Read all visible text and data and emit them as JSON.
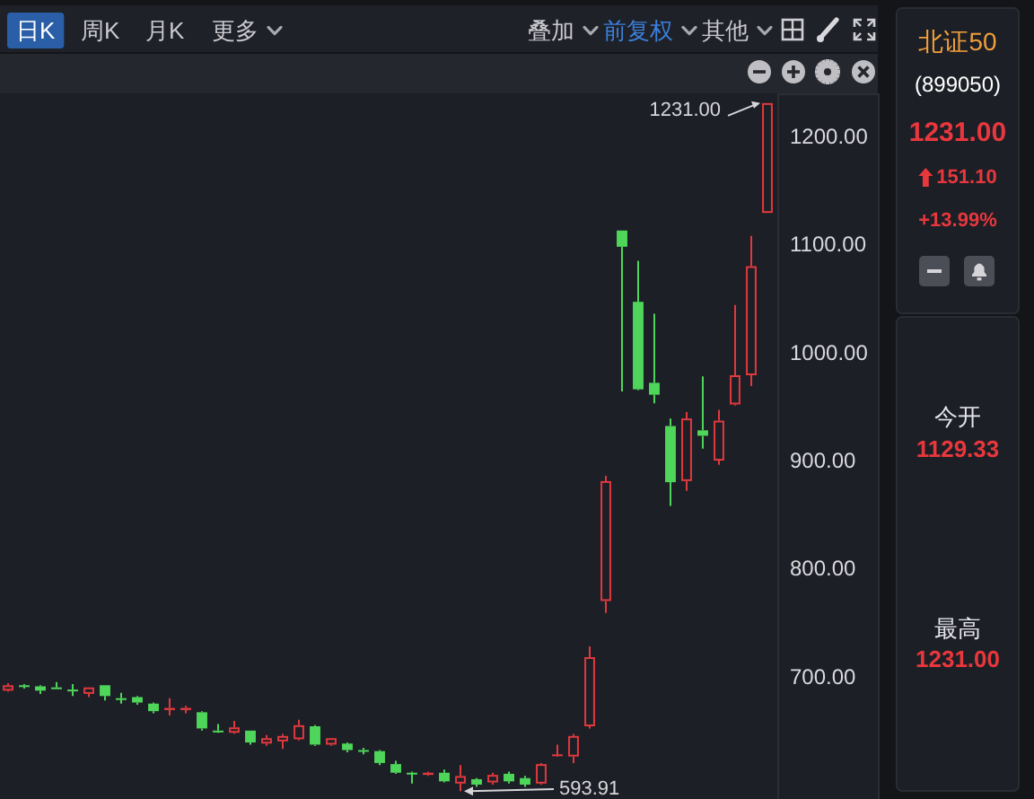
{
  "chart_data": [
    {
      "type": "other",
      "annotations": [
        "日K",
        "周K",
        "月K",
        "更多",
        "叠加",
        "前复权",
        "其他"
      ]
    },
    {
      "type": "candlestick",
      "tick_labels": "y",
      "categories": [
        null,
        null,
        null,
        null,
        null,
        null,
        null,
        null,
        null,
        null,
        null,
        null,
        null,
        null,
        null,
        null,
        null,
        null,
        null,
        null,
        null,
        null,
        null,
        null,
        null,
        null,
        null,
        null,
        null,
        null,
        null,
        null,
        null,
        null,
        null,
        null,
        null,
        null,
        null,
        null,
        null,
        null,
        null,
        null,
        null,
        null,
        null,
        null
      ],
      "ohlc": [
        [
          687,
          694,
          686,
          692
        ],
        [
          692,
          693,
          689,
          691
        ],
        [
          691,
          692,
          684,
          687
        ],
        [
          690,
          695,
          689,
          689
        ],
        [
          688,
          693,
          682,
          687
        ],
        [
          684,
          690,
          681,
          690
        ],
        [
          692,
          692,
          678,
          682
        ],
        [
          680,
          685,
          675,
          679
        ],
        [
          681,
          682,
          674,
          676
        ],
        [
          675,
          676,
          666,
          668
        ],
        [
          669,
          680,
          664,
          671
        ],
        [
          669,
          673,
          666,
          671
        ],
        [
          667,
          668,
          650,
          652
        ],
        [
          650,
          656,
          648,
          649
        ],
        [
          648,
          659,
          647,
          653
        ],
        [
          650,
          650,
          637,
          639
        ],
        [
          638,
          646,
          636,
          643
        ],
        [
          640,
          647,
          633,
          645
        ],
        [
          642,
          660,
          641,
          655
        ],
        [
          654,
          655,
          636,
          637
        ],
        [
          637,
          643,
          636,
          643
        ],
        [
          638,
          639,
          630,
          632
        ],
        [
          632,
          634,
          628,
          631
        ],
        [
          631,
          632,
          618,
          620
        ],
        [
          619,
          622,
          610,
          611
        ],
        [
          611,
          612,
          601,
          610
        ],
        [
          609,
          612,
          608,
          611
        ],
        [
          611,
          614,
          602,
          603
        ],
        [
          601,
          618,
          593.91,
          608
        ],
        [
          605,
          606,
          598,
          600
        ],
        [
          602,
          611,
          600,
          609
        ],
        [
          610,
          612,
          601,
          603
        ],
        [
          606,
          608,
          598,
          600
        ],
        [
          601,
          620,
          600,
          619
        ],
        [
          627,
          637,
          626,
          628
        ],
        [
          626,
          647,
          620,
          645
        ],
        [
          654,
          728,
          652,
          718
        ],
        [
          770,
          886,
          759,
          881
        ],
        [
          1113,
          1113,
          964,
          1098
        ],
        [
          1047,
          1085,
          965,
          966
        ],
        [
          972,
          1036,
          953,
          961
        ],
        [
          932,
          939,
          858,
          880
        ],
        [
          881,
          945,
          872,
          939
        ],
        [
          928,
          978,
          911,
          923
        ],
        [
          900,
          947,
          896,
          937
        ],
        [
          952,
          1044,
          951,
          979
        ],
        [
          979,
          1108,
          969,
          1080
        ],
        [
          1129.33,
          1231,
          1129.33,
          1231
        ]
      ],
      "colors": [
        "#e0393e",
        "#4fd65a",
        "#4fd65a",
        "#4fd65a",
        "#4fd65a",
        "#e0393e",
        "#4fd65a",
        "#4fd65a",
        "#4fd65a",
        "#4fd65a",
        "#e0393e",
        "#e0393e",
        "#4fd65a",
        "#4fd65a",
        "#e0393e",
        "#4fd65a",
        "#e0393e",
        "#e0393e",
        "#e0393e",
        "#4fd65a",
        "#e0393e",
        "#4fd65a",
        "#4fd65a",
        "#4fd65a",
        "#4fd65a",
        "#4fd65a",
        "#e0393e",
        "#4fd65a",
        "#e0393e",
        "#4fd65a",
        "#e0393e",
        "#4fd65a",
        "#4fd65a",
        "#e0393e",
        "#e0393e",
        "#e0393e",
        "#e0393e",
        "#e0393e",
        "#4fd65a",
        "#4fd65a",
        "#4fd65a",
        "#4fd65a",
        "#e0393e",
        "#4fd65a",
        "#e0393e",
        "#e0393e",
        "#e0393e",
        "#e0393e"
      ],
      "ylim": [
        590,
        1240
      ],
      "yticks": [
        {
          "value": 700,
          "label": "700.00"
        },
        {
          "value": 800,
          "label": "800.00"
        },
        {
          "value": 900,
          "label": "900.00"
        },
        {
          "value": 1000,
          "label": "1000.00"
        },
        {
          "value": 1100,
          "label": "1100.00"
        },
        {
          "value": 1200,
          "label": "1200.00"
        }
      ],
      "annotations": [
        "1231.00",
        "593.91"
      ]
    },
    {
      "type": "other",
      "title": "北证50",
      "subtitle": "(899050)",
      "annotations": [
        "1231.00",
        "151.10",
        "+13.99%",
        "今开",
        "1129.33",
        "最高",
        "1231.00"
      ]
    }
  ]
}
